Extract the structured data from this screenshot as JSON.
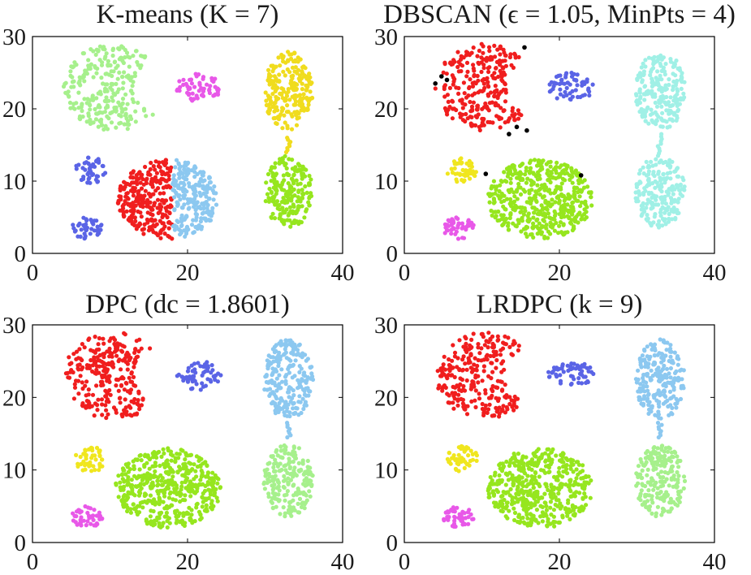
{
  "chart_data": [
    {
      "type": "scatter",
      "title": "K-means (K = 7)",
      "xlabel": "",
      "ylabel": "",
      "xlim": [
        0,
        40
      ],
      "ylim": [
        0,
        30
      ],
      "xticks": [
        "0",
        "20",
        "40"
      ],
      "yticks": [
        "0",
        "10",
        "20",
        "30"
      ],
      "grid": false,
      "legend": "none",
      "clusters": [
        {
          "shape": "crescent",
          "center": [
            10.5,
            23
          ],
          "radius": [
            6.5,
            6.0
          ],
          "cut_x": 13.5,
          "color": "#a6f08c",
          "points": 260
        },
        {
          "shape": "ellipse",
          "center": [
            21.5,
            23
          ],
          "radius": [
            3.0,
            2.0
          ],
          "color": "#e858e8",
          "points": 60
        },
        {
          "shape": "ellipse",
          "center": [
            33,
            22.5
          ],
          "radius": [
            3.2,
            5.5
          ],
          "color": "#f0dc1e",
          "points": 220
        },
        {
          "shape": "bridge",
          "from": [
            33,
            16
          ],
          "to": [
            33,
            14
          ],
          "color": "#f0dc1e",
          "points": 8
        },
        {
          "shape": "ellipse",
          "center": [
            33,
            8.5
          ],
          "radius": [
            3.2,
            5.0
          ],
          "color": "#96e61e",
          "points": 200
        },
        {
          "shape": "ellipse",
          "center": [
            7.5,
            11.5
          ],
          "radius": [
            2.0,
            1.8
          ],
          "color": "#5a64e6",
          "points": 45
        },
        {
          "shape": "ellipse",
          "center": [
            7.0,
            3.5
          ],
          "radius": [
            2.0,
            1.5
          ],
          "color": "#5a64e6",
          "points": 45
        },
        {
          "shape": "ellipse",
          "center": [
            17.5,
            7.5
          ],
          "radius": [
            6.5,
            5.5
          ],
          "xmax": 18,
          "color": "#f01e1e",
          "points": 260
        },
        {
          "shape": "ellipse",
          "center": [
            17.5,
            7.5
          ],
          "radius": [
            6.5,
            5.5
          ],
          "xmin": 18,
          "color": "#8cc8f0",
          "points": 220
        }
      ]
    },
    {
      "type": "scatter",
      "title": "DBSCAN (ϵ = 1.05, MinPts = 4)",
      "xlabel": "",
      "ylabel": "",
      "xlim": [
        0,
        40
      ],
      "ylim": [
        0,
        30
      ],
      "xticks": [
        "0",
        "20",
        "40"
      ],
      "yticks": [
        "0",
        "10",
        "20",
        "30"
      ],
      "grid": false,
      "legend": "none",
      "noise_points": [
        [
          4.0,
          23.5
        ],
        [
          4.8,
          24.5
        ],
        [
          5.5,
          24.0
        ],
        [
          15.5,
          28.5
        ],
        [
          14.5,
          17.5
        ],
        [
          15.8,
          17.0
        ],
        [
          10.5,
          11.0
        ],
        [
          22.8,
          10.8
        ],
        [
          13.5,
          16.5
        ]
      ],
      "noise_color": "#000000",
      "clusters": [
        {
          "shape": "crescent",
          "center": [
            10.5,
            23
          ],
          "radius": [
            6.5,
            6.0
          ],
          "cut_x": 13.5,
          "color": "#f01e1e",
          "points": 260
        },
        {
          "shape": "ellipse",
          "center": [
            21.5,
            23
          ],
          "radius": [
            3.0,
            2.0
          ],
          "color": "#5a64e6",
          "points": 60
        },
        {
          "shape": "ellipse",
          "center": [
            33,
            22.5
          ],
          "radius": [
            3.2,
            5.5
          ],
          "color": "#a0f0e6",
          "points": 220
        },
        {
          "shape": "bridge",
          "from": [
            33,
            16.5
          ],
          "to": [
            33,
            13.5
          ],
          "color": "#a0f0e6",
          "points": 10
        },
        {
          "shape": "ellipse",
          "center": [
            33,
            8.5
          ],
          "radius": [
            3.2,
            5.0
          ],
          "color": "#a0f0e6",
          "points": 200
        },
        {
          "shape": "ellipse",
          "center": [
            7.5,
            11.5
          ],
          "radius": [
            2.0,
            1.8
          ],
          "color": "#f0e61e",
          "points": 45
        },
        {
          "shape": "ellipse",
          "center": [
            7.0,
            3.5
          ],
          "radius": [
            2.0,
            1.5
          ],
          "color": "#e858e8",
          "points": 45
        },
        {
          "shape": "ellipse",
          "center": [
            17.5,
            7.5
          ],
          "radius": [
            6.8,
            5.5
          ],
          "color": "#96e61e",
          "points": 480
        }
      ]
    },
    {
      "type": "scatter",
      "title": "DPC (dc = 1.8601)",
      "xlabel": "",
      "ylabel": "",
      "xlim": [
        0,
        40
      ],
      "ylim": [
        0,
        30
      ],
      "xticks": [
        "0",
        "20",
        "40"
      ],
      "yticks": [
        "0",
        "10",
        "20",
        "30"
      ],
      "grid": false,
      "legend": "none",
      "clusters": [
        {
          "shape": "crescent",
          "center": [
            10.5,
            23
          ],
          "radius": [
            6.5,
            6.0
          ],
          "cut_x": 13.5,
          "color": "#f01e1e",
          "points": 260
        },
        {
          "shape": "ellipse",
          "center": [
            21.5,
            23
          ],
          "radius": [
            3.0,
            2.0
          ],
          "color": "#5a64e6",
          "points": 60
        },
        {
          "shape": "ellipse",
          "center": [
            33,
            22.5
          ],
          "radius": [
            3.2,
            5.5
          ],
          "color": "#8cc8f0",
          "points": 220
        },
        {
          "shape": "bridge",
          "from": [
            33,
            16.5
          ],
          "to": [
            33,
            14.5
          ],
          "color": "#8cc8f0",
          "points": 8
        },
        {
          "shape": "ellipse",
          "center": [
            33,
            8.5
          ],
          "radius": [
            3.2,
            5.0
          ],
          "color": "#a6f08c",
          "points": 200
        },
        {
          "shape": "ellipse",
          "center": [
            7.5,
            11.5
          ],
          "radius": [
            2.0,
            1.8
          ],
          "color": "#f0e61e",
          "points": 45
        },
        {
          "shape": "ellipse",
          "center": [
            7.0,
            3.5
          ],
          "radius": [
            2.0,
            1.5
          ],
          "color": "#e858e8",
          "points": 45
        },
        {
          "shape": "ellipse",
          "center": [
            17.5,
            7.5
          ],
          "radius": [
            6.8,
            5.5
          ],
          "color": "#96e61e",
          "points": 480
        }
      ]
    },
    {
      "type": "scatter",
      "title": "LRDPC (k = 9)",
      "xlabel": "",
      "ylabel": "",
      "xlim": [
        0,
        40
      ],
      "ylim": [
        0,
        30
      ],
      "xticks": [
        "0",
        "20",
        "40"
      ],
      "yticks": [
        "0",
        "10",
        "20",
        "30"
      ],
      "grid": false,
      "legend": "none",
      "clusters": [
        {
          "shape": "crescent",
          "center": [
            10.5,
            23
          ],
          "radius": [
            6.5,
            6.0
          ],
          "cut_x": 13.5,
          "color": "#f01e1e",
          "points": 260
        },
        {
          "shape": "ellipse",
          "center": [
            21.5,
            23
          ],
          "radius": [
            3.0,
            2.0
          ],
          "color": "#5a64e6",
          "points": 60
        },
        {
          "shape": "ellipse",
          "center": [
            33,
            22.5
          ],
          "radius": [
            3.2,
            5.5
          ],
          "color": "#8cc8f0",
          "points": 220
        },
        {
          "shape": "bridge",
          "from": [
            33,
            16.5
          ],
          "to": [
            33,
            14.5
          ],
          "color": "#8cc8f0",
          "points": 8
        },
        {
          "shape": "ellipse",
          "center": [
            33,
            8.5
          ],
          "radius": [
            3.2,
            5.0
          ],
          "color": "#a6f08c",
          "points": 200
        },
        {
          "shape": "ellipse",
          "center": [
            7.5,
            11.5
          ],
          "radius": [
            2.0,
            1.8
          ],
          "color": "#f0e61e",
          "points": 45
        },
        {
          "shape": "ellipse",
          "center": [
            7.0,
            3.5
          ],
          "radius": [
            2.0,
            1.5
          ],
          "color": "#e858e8",
          "points": 45
        },
        {
          "shape": "ellipse",
          "center": [
            17.5,
            7.5
          ],
          "radius": [
            6.8,
            5.5
          ],
          "color": "#96e61e",
          "points": 480
        }
      ]
    }
  ]
}
